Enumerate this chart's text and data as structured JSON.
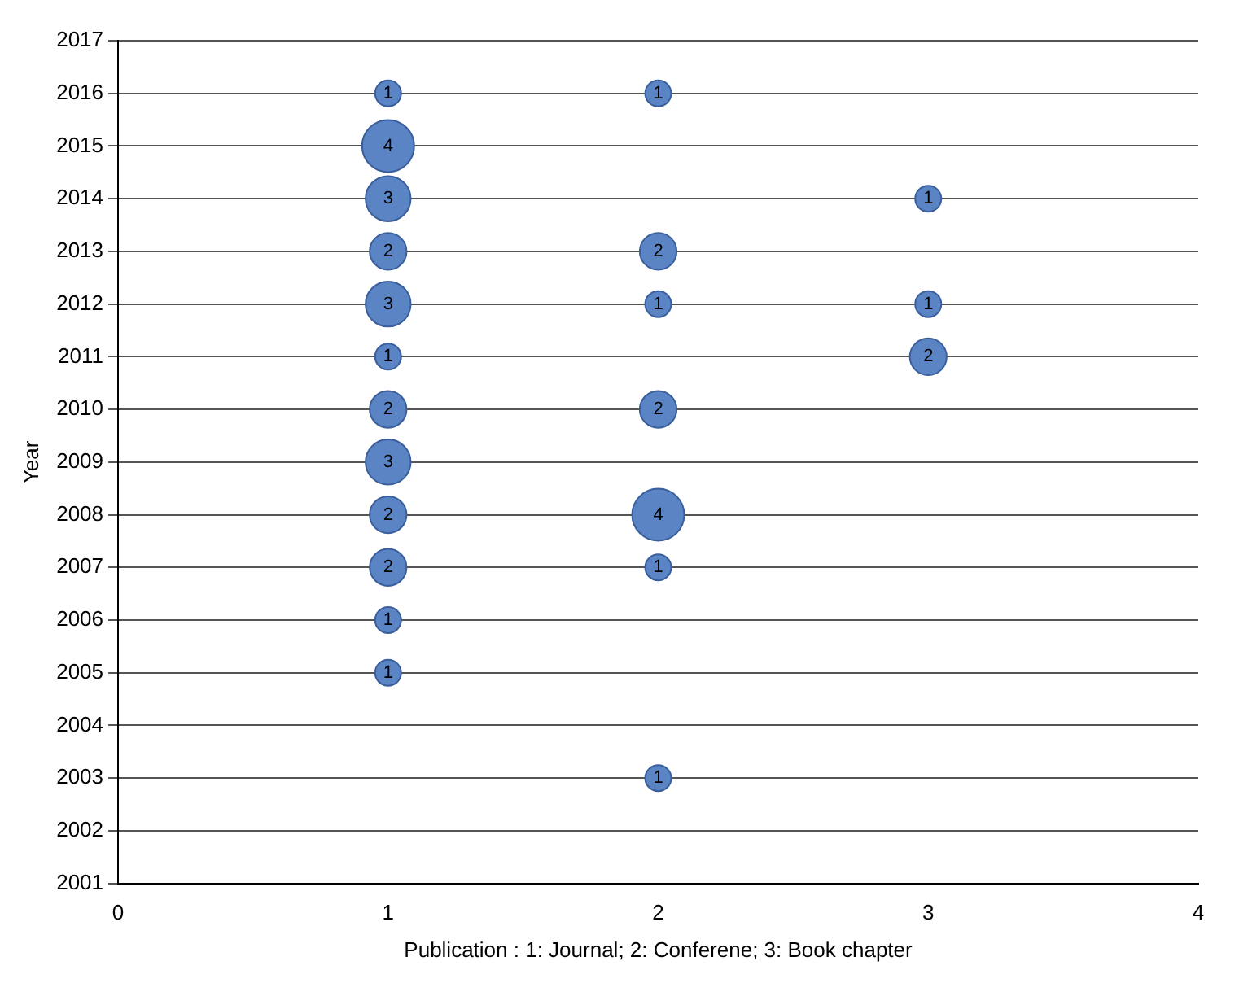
{
  "chart_data": {
    "type": "bubble",
    "xlabel": "Publication : 1: Journal; 2: Conferene; 3: Book chapter",
    "ylabel": "Year",
    "x": [
      1,
      1,
      1,
      1,
      1,
      1,
      1,
      1,
      1,
      1,
      1,
      1,
      2,
      2,
      2,
      2,
      2,
      2,
      2,
      3,
      3,
      3
    ],
    "values": [
      2016,
      2015,
      2014,
      2013,
      2012,
      2011,
      2010,
      2009,
      2008,
      2007,
      2006,
      2005,
      2016,
      2013,
      2012,
      2010,
      2008,
      2007,
      2003,
      2014,
      2012,
      2011
    ],
    "sizes": [
      1,
      4,
      3,
      2,
      3,
      1,
      2,
      3,
      2,
      2,
      1,
      1,
      1,
      2,
      1,
      2,
      4,
      1,
      1,
      1,
      1,
      2
    ],
    "value_labels": [
      "1",
      "4",
      "3",
      "2",
      "3",
      "1",
      "2",
      "3",
      "2",
      "2",
      "1",
      "1",
      "1",
      "2",
      "1",
      "2",
      "4",
      "1",
      "1",
      "1",
      "1",
      "2"
    ],
    "color": "#5b84c4",
    "xlim": [
      0,
      4
    ],
    "xticks": [
      0,
      1,
      2,
      3,
      4
    ],
    "ylim": [
      2001,
      2017
    ],
    "yticks": [
      2001,
      2002,
      2003,
      2004,
      2005,
      2006,
      2007,
      2008,
      2009,
      2010,
      2011,
      2012,
      2013,
      2014,
      2015,
      2016,
      2017
    ],
    "grid": "y"
  }
}
